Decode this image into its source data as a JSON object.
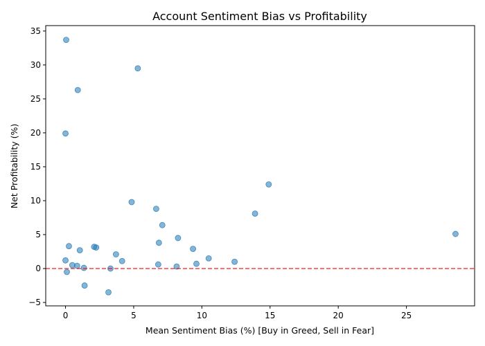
{
  "chart_data": {
    "type": "scatter",
    "title": "Account Sentiment Bias vs Profitability",
    "xlabel": "Mean Sentiment Bias (%) [Buy in Greed, Sell in Fear]",
    "ylabel": "Net Profitability (%)",
    "xlim": [
      -1.45,
      30.0
    ],
    "ylim": [
      -5.5,
      35.8
    ],
    "xticks": [
      0,
      5,
      10,
      15,
      20,
      25
    ],
    "yticks": [
      -5,
      0,
      5,
      10,
      15,
      20,
      25,
      30,
      35
    ],
    "grid": false,
    "marker_color": "#1f77b4",
    "marker_alpha": 0.55,
    "reference_line": {
      "y": 0,
      "style": "dashed",
      "color": "#ff0000"
    },
    "points": [
      {
        "x": 0.05,
        "y": 33.7
      },
      {
        "x": 5.3,
        "y": 29.5
      },
      {
        "x": 0.9,
        "y": 26.3
      },
      {
        "x": 0.0,
        "y": 19.9
      },
      {
        "x": 14.9,
        "y": 12.4
      },
      {
        "x": 4.85,
        "y": 9.8
      },
      {
        "x": 6.65,
        "y": 8.8
      },
      {
        "x": 13.9,
        "y": 8.1
      },
      {
        "x": 7.1,
        "y": 6.4
      },
      {
        "x": 28.6,
        "y": 5.1
      },
      {
        "x": 8.25,
        "y": 4.5
      },
      {
        "x": 6.85,
        "y": 3.8
      },
      {
        "x": 0.25,
        "y": 3.3
      },
      {
        "x": 2.1,
        "y": 3.2
      },
      {
        "x": 2.25,
        "y": 3.1
      },
      {
        "x": 9.35,
        "y": 2.9
      },
      {
        "x": 1.05,
        "y": 2.7
      },
      {
        "x": 3.7,
        "y": 2.1
      },
      {
        "x": 10.5,
        "y": 1.5
      },
      {
        "x": 0.0,
        "y": 1.2
      },
      {
        "x": 4.15,
        "y": 1.1
      },
      {
        "x": 12.4,
        "y": 1.0
      },
      {
        "x": 9.6,
        "y": 0.7
      },
      {
        "x": 6.8,
        "y": 0.6
      },
      {
        "x": 0.5,
        "y": 0.5
      },
      {
        "x": 0.85,
        "y": 0.4
      },
      {
        "x": 8.15,
        "y": 0.3
      },
      {
        "x": 1.35,
        "y": 0.1
      },
      {
        "x": 3.3,
        "y": 0.0
      },
      {
        "x": 0.1,
        "y": -0.5
      },
      {
        "x": 1.4,
        "y": -2.5
      },
      {
        "x": 3.15,
        "y": -3.5
      }
    ]
  }
}
